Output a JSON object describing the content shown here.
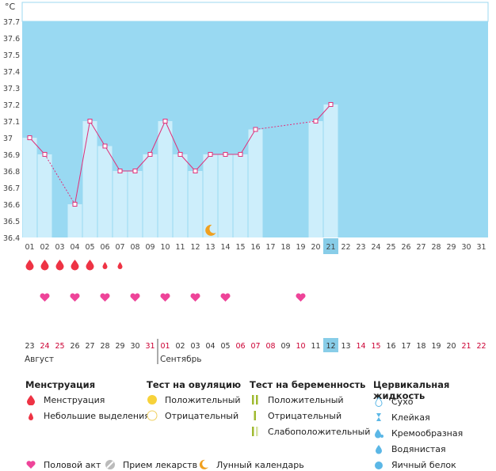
{
  "chart_data": {
    "type": "line",
    "ylabel": "°C",
    "ylim": [
      36.4,
      37.7
    ],
    "y_ticks": [
      "37.7",
      "37.6",
      "37.5",
      "37.4",
      "37.3",
      "37.2",
      "37.1",
      "37",
      "36.9",
      "36.8",
      "36.7",
      "36.6",
      "36.5",
      "36.4"
    ],
    "cycle_days": [
      "01",
      "02",
      "03",
      "04",
      "05",
      "06",
      "07",
      "08",
      "09",
      "10",
      "11",
      "12",
      "13",
      "14",
      "15",
      "16",
      "17",
      "18",
      "19",
      "20",
      "21",
      "22",
      "23",
      "24",
      "25",
      "26",
      "27",
      "28",
      "29",
      "30",
      "31"
    ],
    "current_day_index": 20,
    "series": [
      {
        "values": [
          37.0,
          36.9,
          null,
          36.6,
          37.1,
          36.95,
          36.8,
          36.8,
          36.9,
          37.1,
          36.9,
          36.8,
          36.9,
          36.9,
          36.9,
          37.05,
          null,
          null,
          null,
          37.1,
          37.2,
          null,
          null,
          null,
          null,
          null,
          null,
          null,
          null,
          null,
          null
        ]
      }
    ],
    "menstruation_days": [
      1,
      2,
      3,
      4,
      5
    ],
    "spotting_days": [
      6,
      7
    ],
    "intercourse_days": [
      2,
      4,
      6,
      8,
      10,
      12,
      14,
      19
    ],
    "moon_days": [
      13
    ],
    "dates": [
      "23",
      "24",
      "25",
      "26",
      "27",
      "28",
      "29",
      "30",
      "31",
      "01",
      "02",
      "03",
      "04",
      "05",
      "06",
      "07",
      "08",
      "09",
      "10",
      "11",
      "12",
      "13",
      "14",
      "15",
      "16",
      "17",
      "18",
      "19",
      "20",
      "21",
      "22"
    ],
    "date_colors": [
      "#333",
      "#cc0033",
      "#cc0033",
      "#333",
      "#333",
      "#333",
      "#333",
      "#333",
      "#cc0033",
      "#cc0033",
      "#333",
      "#333",
      "#333",
      "#333",
      "#cc0033",
      "#cc0033",
      "#cc0033",
      "#333",
      "#cc0033",
      "#333",
      "#333",
      "#333",
      "#cc0033",
      "#cc0033",
      "#333",
      "#333",
      "#333",
      "#333",
      "#333",
      "#cc0033",
      "#cc0033"
    ],
    "months": [
      {
        "label": "Август",
        "start_index": 0
      },
      {
        "label": "Сентябрь",
        "start_index": 9
      }
    ]
  },
  "legend": {
    "menstruation": {
      "title": "Менструация",
      "items": [
        "Менструация",
        "Небольшие выделения"
      ]
    },
    "ovulation": {
      "title": "Тест на овуляцию",
      "items": [
        "Положительный",
        "Отрицательный"
      ]
    },
    "pregnancy": {
      "title": "Тест на беременность",
      "items": [
        "Положительный",
        "Отрицательный",
        "Слабоположительный"
      ]
    },
    "cervical": {
      "title": "Цервикальная жидкость",
      "items": [
        "Сухо",
        "Клейкая",
        "Кремообразная",
        "Водянистая",
        "Яичный белок"
      ]
    },
    "bottom": [
      "Половой акт",
      "Прием лекарств",
      "Лунный календарь"
    ]
  },
  "colors": {
    "sky": "#99d9f2",
    "bar": "#cdeefb",
    "line": "#e0307a",
    "drop": "#ee3344",
    "heart": "#ee4499",
    "moon": "#f0a020",
    "today": "#88cde8"
  }
}
